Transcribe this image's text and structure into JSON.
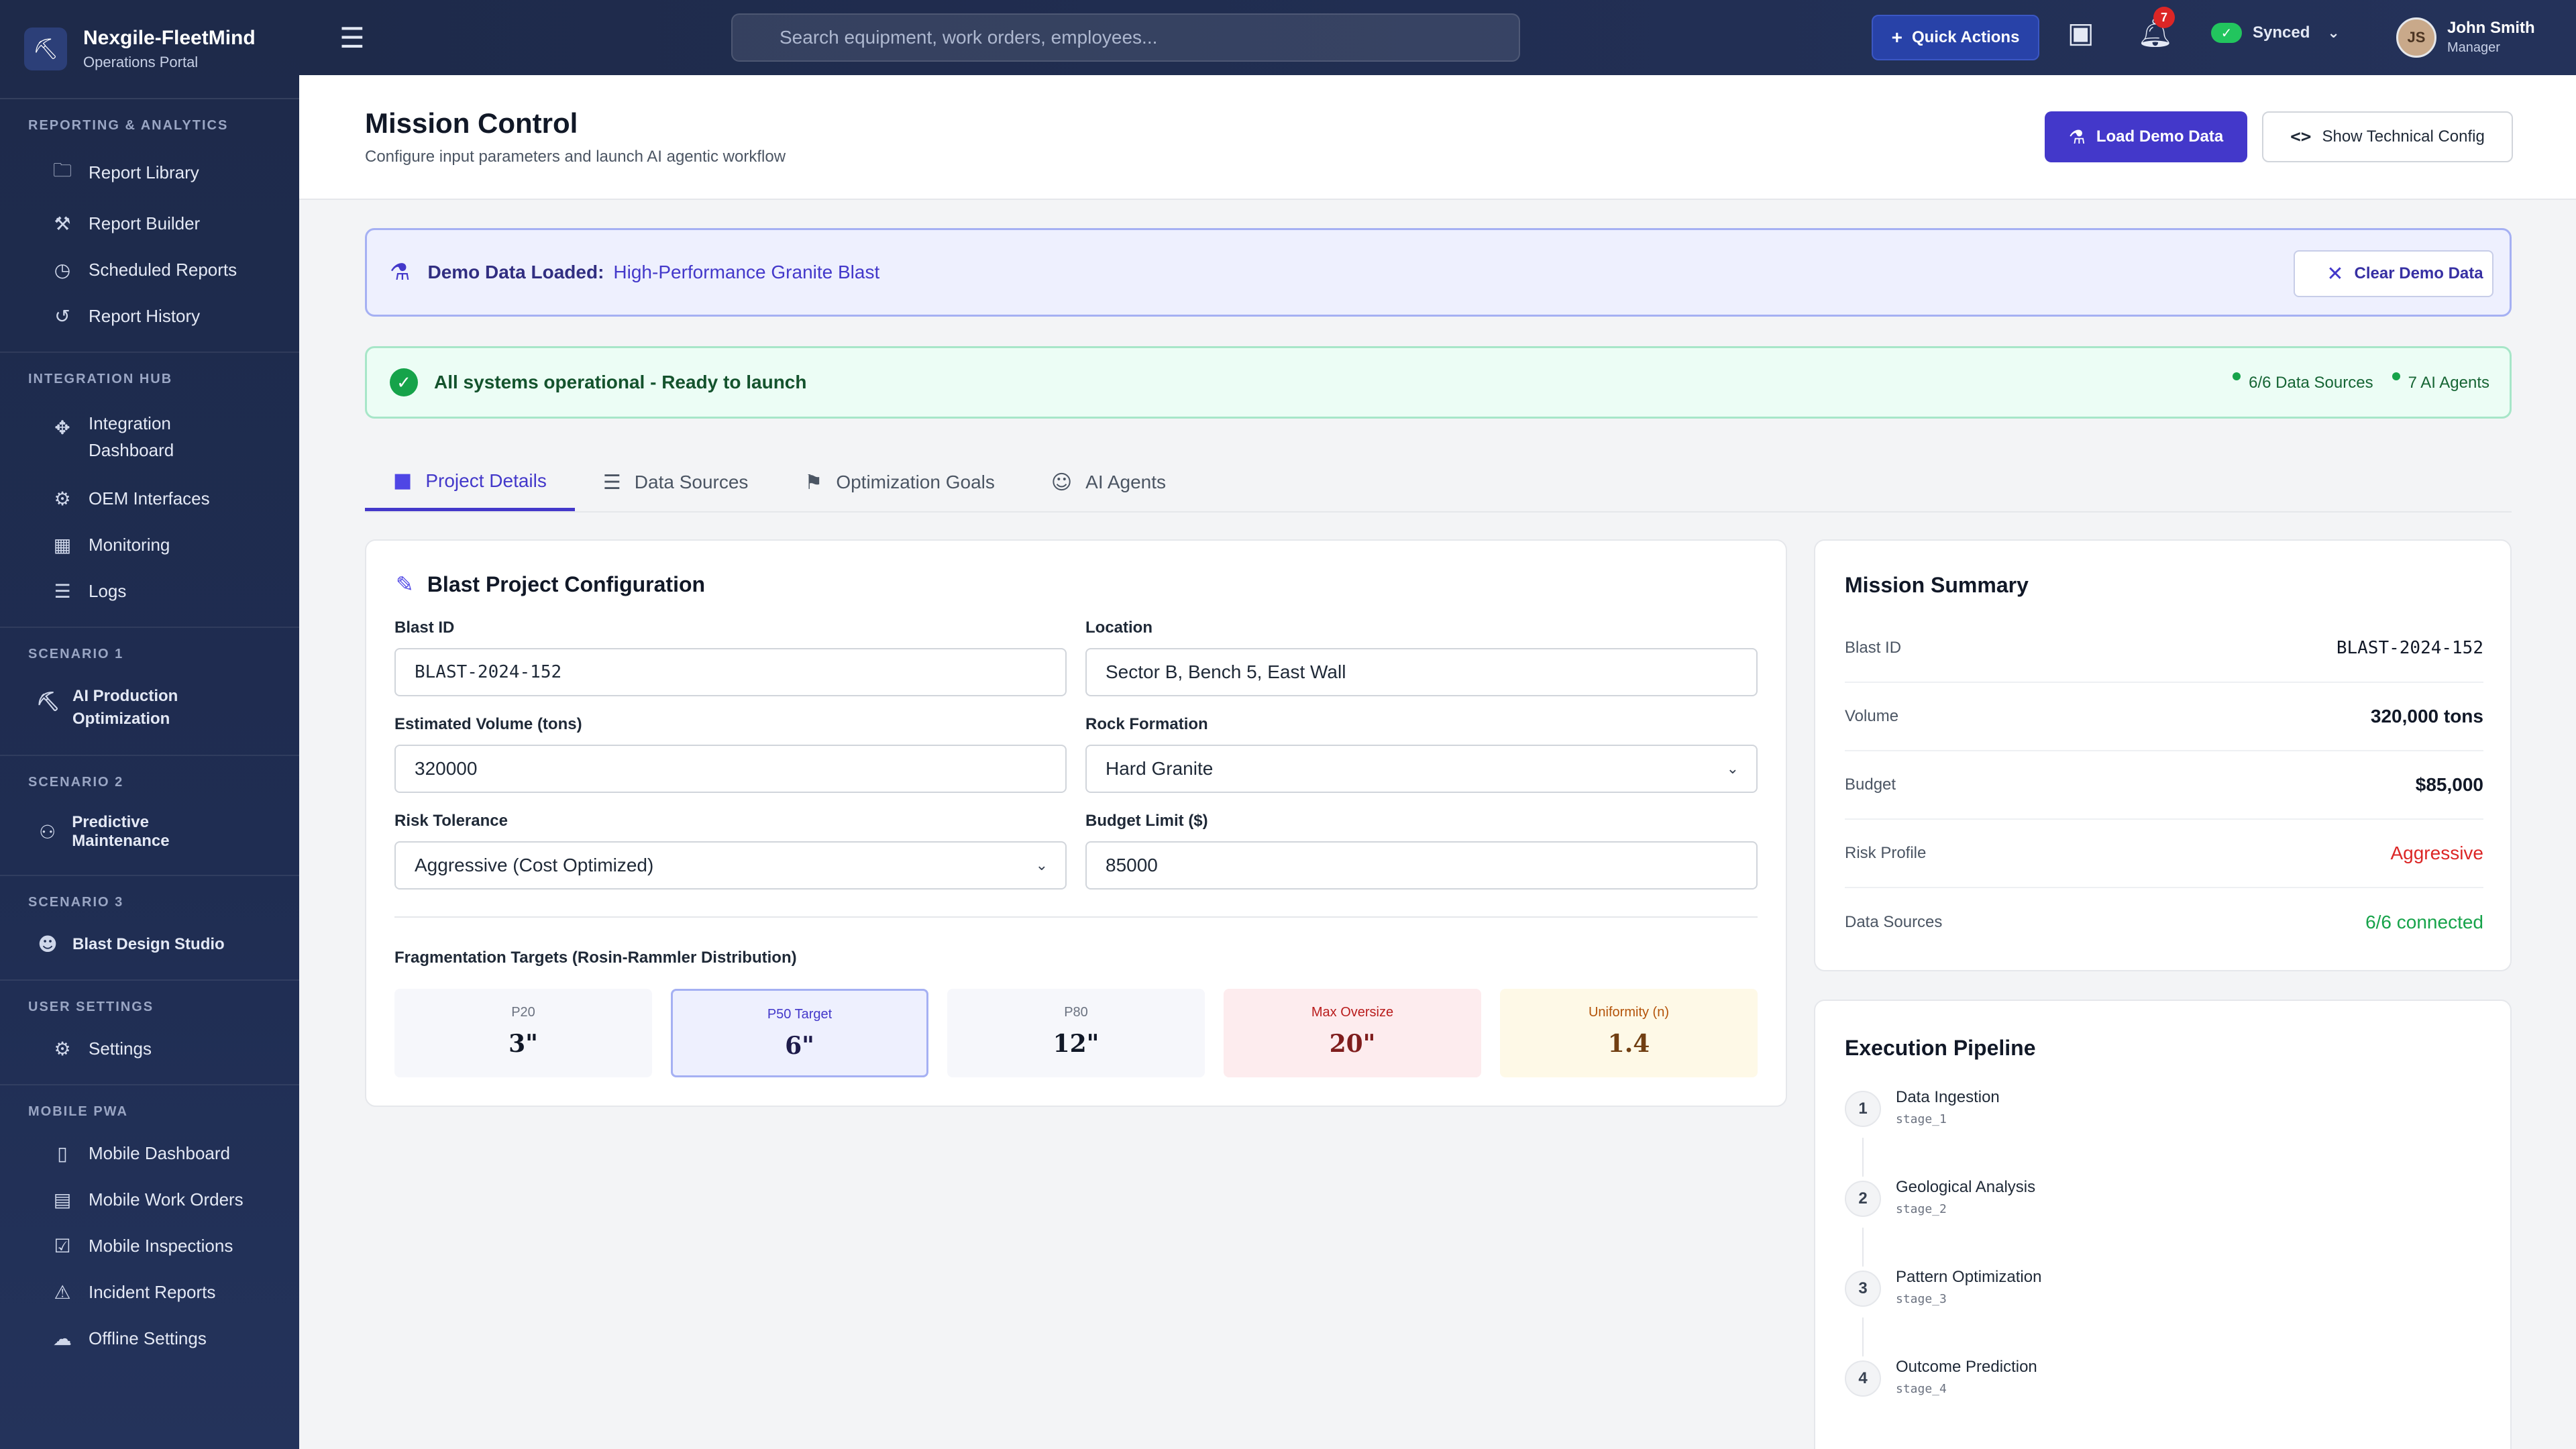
{
  "brand": {
    "name": "Nexgile-FleetMind",
    "subtitle": "Operations Portal"
  },
  "sidebar": {
    "sections": [
      {
        "heading": "REPORTING & ANALYTICS",
        "items": [
          {
            "label": "Report Library",
            "icon": "folder-icon"
          },
          {
            "label": "Report Builder",
            "icon": "wrench-icon"
          },
          {
            "label": "Scheduled Reports",
            "icon": "clock-icon"
          },
          {
            "label": "Report History",
            "icon": "history-icon"
          }
        ]
      },
      {
        "heading": "INTEGRATION HUB",
        "items": [
          {
            "label": "Integration Dashboard",
            "icon": "hub-icon"
          },
          {
            "label": "OEM Interfaces",
            "icon": "plug-icon"
          },
          {
            "label": "Monitoring",
            "icon": "chart-icon"
          },
          {
            "label": "Logs",
            "icon": "list-icon"
          }
        ]
      },
      {
        "heading": "SCENARIO 1",
        "items": [
          {
            "label": "AI Production Optimization",
            "icon": "excavator-icon"
          }
        ]
      },
      {
        "heading": "SCENARIO 2",
        "items": [
          {
            "label": "Predictive Maintenance",
            "icon": "mechanic-icon"
          }
        ]
      },
      {
        "heading": "SCENARIO 3",
        "items": [
          {
            "label": "Blast Design Studio",
            "icon": "engineer-icon"
          }
        ]
      },
      {
        "heading": "USER SETTINGS",
        "items": [
          {
            "label": "Settings",
            "icon": "gear-icon"
          }
        ]
      },
      {
        "heading": "MOBILE PWA",
        "items": [
          {
            "label": "Mobile Dashboard",
            "icon": "phone-icon"
          },
          {
            "label": "Mobile Work Orders",
            "icon": "clipboard-icon"
          },
          {
            "label": "Mobile Inspections",
            "icon": "checklist-icon"
          },
          {
            "label": "Incident Reports",
            "icon": "warning-icon"
          },
          {
            "label": "Offline Settings",
            "icon": "offline-icon"
          }
        ]
      }
    ]
  },
  "header": {
    "search_placeholder": "Search equipment, work orders, employees...",
    "quick_actions": "Quick Actions",
    "notification_count": "7",
    "sync_status": "Synced",
    "user_name": "John Smith",
    "user_role": "Manager",
    "user_initials": "JS"
  },
  "page": {
    "title": "Mission Control",
    "subtitle": "Configure input parameters and launch AI agentic workflow",
    "load_demo": "Load Demo Data",
    "show_config": "Show Technical Config"
  },
  "demo_banner": {
    "label": "Demo Data Loaded:",
    "value": "High-Performance Granite Blast",
    "clear": "Clear Demo Data"
  },
  "status_banner": {
    "text": "All systems operational - Ready to launch",
    "data_sources": "6/6 Data Sources",
    "agents": "7 AI Agents"
  },
  "tabs": [
    {
      "label": "Project Details",
      "icon": "folder-icon",
      "active": true
    },
    {
      "label": "Data Sources",
      "icon": "database-icon",
      "active": false
    },
    {
      "label": "Optimization Goals",
      "icon": "flag-icon",
      "active": false
    },
    {
      "label": "AI Agents",
      "icon": "robot-icon",
      "active": false
    }
  ],
  "config": {
    "title": "Blast Project Configuration",
    "blast_id_label": "Blast ID",
    "blast_id": "BLAST-2024-152",
    "location_label": "Location",
    "location": "Sector B, Bench 5, East Wall",
    "volume_label": "Estimated Volume (tons)",
    "volume": "320000",
    "rock_label": "Rock Formation",
    "rock": "Hard Granite",
    "risk_label": "Risk Tolerance",
    "risk": "Aggressive (Cost Optimized)",
    "budget_label": "Budget Limit ($)",
    "budget": "85000",
    "frag_title": "Fragmentation Targets (Rosin-Rammler Distribution)",
    "targets": [
      {
        "label": "P20",
        "value": "3\""
      },
      {
        "label": "P50 Target",
        "value": "6\""
      },
      {
        "label": "P80",
        "value": "12\""
      },
      {
        "label": "Max Oversize",
        "value": "20\""
      },
      {
        "label": "Uniformity (n)",
        "value": "1.4"
      }
    ]
  },
  "summary": {
    "title": "Mission Summary",
    "rows": [
      {
        "key": "Blast ID",
        "value": "BLAST-2024-152"
      },
      {
        "key": "Volume",
        "value": "320,000 tons"
      },
      {
        "key": "Budget",
        "value": "$85,000"
      },
      {
        "key": "Risk Profile",
        "value": "Aggressive"
      },
      {
        "key": "Data Sources",
        "value": "6/6 connected"
      }
    ]
  },
  "pipeline": {
    "title": "Execution Pipeline",
    "stages": [
      {
        "num": "1",
        "name": "Data Ingestion",
        "id": "stage_1"
      },
      {
        "num": "2",
        "name": "Geological Analysis",
        "id": "stage_2"
      },
      {
        "num": "3",
        "name": "Pattern Optimization",
        "id": "stage_3"
      },
      {
        "num": "4",
        "name": "Outcome Prediction",
        "id": "stage_4"
      }
    ]
  },
  "colors": {
    "accent": "#4338ca",
    "success": "#16a34a",
    "danger": "#dc2626",
    "sidebar": "#1e2a4a"
  }
}
